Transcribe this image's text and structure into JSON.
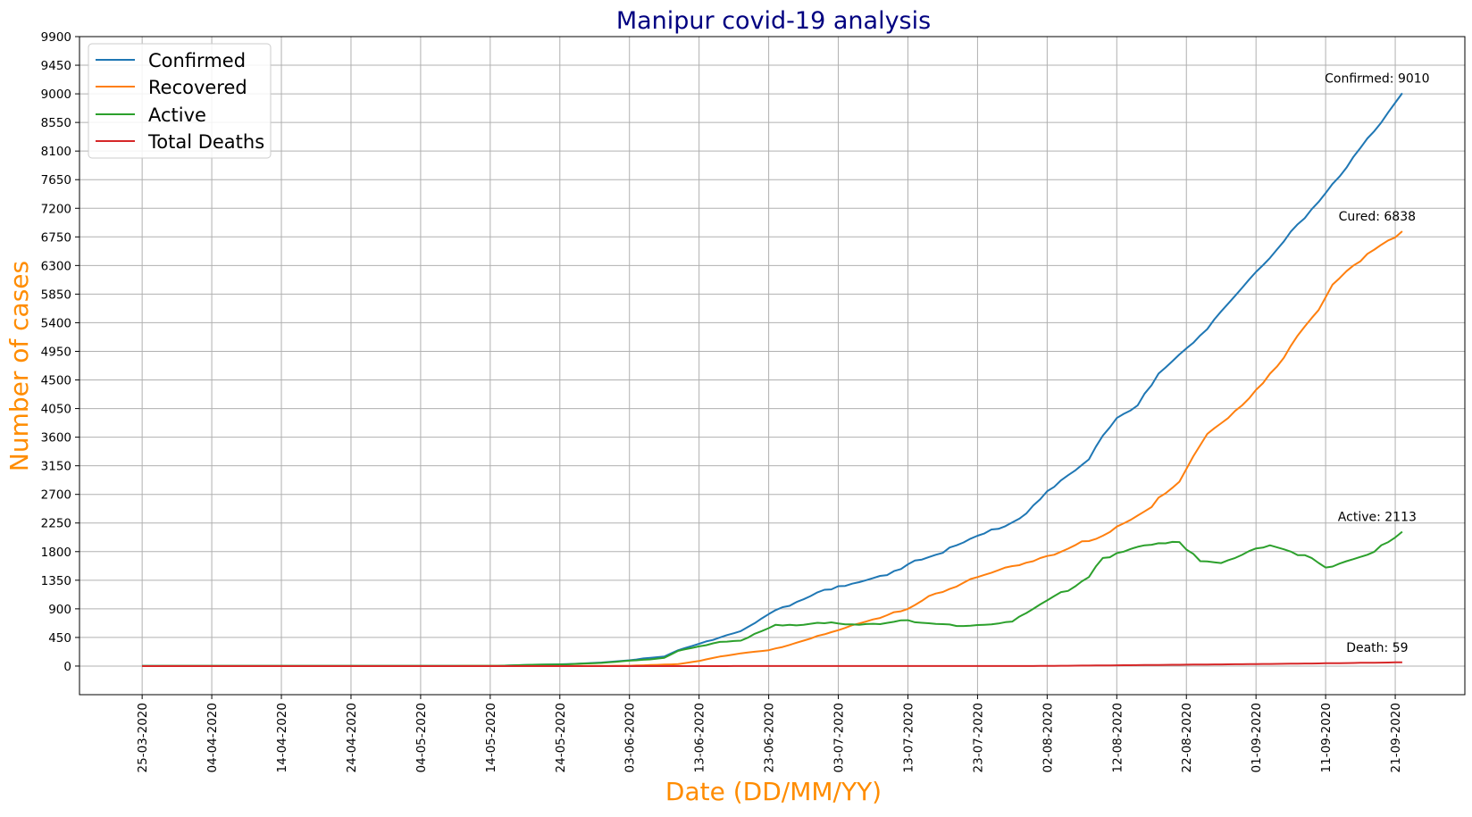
{
  "chart_data": {
    "type": "line",
    "title": "Manipur covid-19 analysis",
    "xlabel": "Date (DD/MM/YY)",
    "ylabel": "Number of cases",
    "x_tick_labels": [
      "25-03-2020",
      "04-04-2020",
      "14-04-2020",
      "24-04-2020",
      "04-05-2020",
      "14-05-2020",
      "24-05-2020",
      "03-06-2020",
      "13-06-2020",
      "23-06-2020",
      "03-07-2020",
      "13-07-2020",
      "23-07-2020",
      "02-08-2020",
      "12-08-2020",
      "22-08-2020",
      "01-09-2020",
      "11-09-2020",
      "21-09-2020"
    ],
    "x_range": [
      "2020-03-16",
      "2020-10-01"
    ],
    "ylim": [
      -450,
      9900
    ],
    "yticks": [
      0,
      450,
      900,
      1350,
      1800,
      2250,
      2700,
      3150,
      3600,
      4050,
      4500,
      4950,
      5400,
      5850,
      6300,
      6750,
      7200,
      7650,
      8100,
      8550,
      9000,
      9450,
      9900
    ],
    "grid": true,
    "legend_position": "upper-left",
    "colors": {
      "title": "#000080",
      "axis_labels": "#ff8c00"
    },
    "series": [
      {
        "name": "Confirmed",
        "color": "#1f77b4",
        "points": [
          [
            "2020-03-25",
            2
          ],
          [
            "2020-05-15",
            3
          ],
          [
            "2020-05-20",
            20
          ],
          [
            "2020-05-25",
            30
          ],
          [
            "2020-05-30",
            55
          ],
          [
            "2020-06-03",
            90
          ],
          [
            "2020-06-05",
            120
          ],
          [
            "2020-06-08",
            150
          ],
          [
            "2020-06-10",
            250
          ],
          [
            "2020-06-13",
            350
          ],
          [
            "2020-06-16",
            450
          ],
          [
            "2020-06-19",
            550
          ],
          [
            "2020-06-22",
            750
          ],
          [
            "2020-06-24",
            880
          ],
          [
            "2020-06-28",
            1050
          ],
          [
            "2020-07-01",
            1200
          ],
          [
            "2020-07-04",
            1260
          ],
          [
            "2020-07-07",
            1350
          ],
          [
            "2020-07-10",
            1430
          ],
          [
            "2020-07-13",
            1600
          ],
          [
            "2020-07-17",
            1750
          ],
          [
            "2020-07-20",
            1900
          ],
          [
            "2020-07-23",
            2050
          ],
          [
            "2020-07-27",
            2200
          ],
          [
            "2020-07-30",
            2400
          ],
          [
            "2020-08-02",
            2750
          ],
          [
            "2020-08-05",
            3000
          ],
          [
            "2020-08-08",
            3250
          ],
          [
            "2020-08-09",
            3450
          ],
          [
            "2020-08-12",
            3900
          ],
          [
            "2020-08-15",
            4100
          ],
          [
            "2020-08-18",
            4600
          ],
          [
            "2020-08-21",
            4900
          ],
          [
            "2020-08-25",
            5300
          ],
          [
            "2020-08-28",
            5700
          ],
          [
            "2020-09-01",
            6200
          ],
          [
            "2020-09-04",
            6550
          ],
          [
            "2020-09-07",
            6950
          ],
          [
            "2020-09-10",
            7300
          ],
          [
            "2020-09-13",
            7700
          ],
          [
            "2020-09-16",
            8150
          ],
          [
            "2020-09-19",
            8550
          ],
          [
            "2020-09-22",
            9010
          ]
        ]
      },
      {
        "name": "Recovered",
        "color": "#ff7f0e",
        "points": [
          [
            "2020-03-25",
            0
          ],
          [
            "2020-05-25",
            2
          ],
          [
            "2020-06-03",
            5
          ],
          [
            "2020-06-10",
            30
          ],
          [
            "2020-06-13",
            80
          ],
          [
            "2020-06-16",
            150
          ],
          [
            "2020-06-19",
            200
          ],
          [
            "2020-06-23",
            250
          ],
          [
            "2020-06-25",
            300
          ],
          [
            "2020-06-28",
            400
          ],
          [
            "2020-07-01",
            500
          ],
          [
            "2020-07-04",
            600
          ],
          [
            "2020-07-07",
            700
          ],
          [
            "2020-07-10",
            800
          ],
          [
            "2020-07-13",
            900
          ],
          [
            "2020-07-16",
            1100
          ],
          [
            "2020-07-20",
            1250
          ],
          [
            "2020-07-23",
            1400
          ],
          [
            "2020-07-27",
            1550
          ],
          [
            "2020-07-31",
            1650
          ],
          [
            "2020-08-03",
            1750
          ],
          [
            "2020-08-06",
            1900
          ],
          [
            "2020-08-10",
            2050
          ],
          [
            "2020-08-14",
            2300
          ],
          [
            "2020-08-17",
            2500
          ],
          [
            "2020-08-18",
            2650
          ],
          [
            "2020-08-21",
            2900
          ],
          [
            "2020-08-23",
            3300
          ],
          [
            "2020-08-25",
            3650
          ],
          [
            "2020-08-28",
            3900
          ],
          [
            "2020-08-30",
            4100
          ],
          [
            "2020-09-02",
            4450
          ],
          [
            "2020-09-05",
            4850
          ],
          [
            "2020-09-07",
            5200
          ],
          [
            "2020-09-10",
            5600
          ],
          [
            "2020-09-12",
            6000
          ],
          [
            "2020-09-15",
            6300
          ],
          [
            "2020-09-18",
            6550
          ],
          [
            "2020-09-22",
            6838
          ]
        ]
      },
      {
        "name": "Active",
        "color": "#2ca02c",
        "points": [
          [
            "2020-03-25",
            2
          ],
          [
            "2020-05-15",
            3
          ],
          [
            "2020-05-20",
            20
          ],
          [
            "2020-05-25",
            28
          ],
          [
            "2020-05-30",
            50
          ],
          [
            "2020-06-03",
            85
          ],
          [
            "2020-06-06",
            105
          ],
          [
            "2020-06-08",
            130
          ],
          [
            "2020-06-10",
            240
          ],
          [
            "2020-06-13",
            310
          ],
          [
            "2020-06-16",
            380
          ],
          [
            "2020-06-19",
            400
          ],
          [
            "2020-06-22",
            550
          ],
          [
            "2020-06-24",
            650
          ],
          [
            "2020-06-27",
            640
          ],
          [
            "2020-06-30",
            680
          ],
          [
            "2020-07-03",
            670
          ],
          [
            "2020-07-06",
            650
          ],
          [
            "2020-07-09",
            660
          ],
          [
            "2020-07-12",
            720
          ],
          [
            "2020-07-15",
            680
          ],
          [
            "2020-07-18",
            660
          ],
          [
            "2020-07-21",
            630
          ],
          [
            "2020-07-24",
            650
          ],
          [
            "2020-07-28",
            700
          ],
          [
            "2020-07-31",
            900
          ],
          [
            "2020-08-03",
            1100
          ],
          [
            "2020-08-06",
            1250
          ],
          [
            "2020-08-08",
            1400
          ],
          [
            "2020-08-10",
            1700
          ],
          [
            "2020-08-13",
            1800
          ],
          [
            "2020-08-16",
            1900
          ],
          [
            "2020-08-21",
            1950
          ],
          [
            "2020-08-24",
            1650
          ],
          [
            "2020-08-27",
            1620
          ],
          [
            "2020-08-29",
            1700
          ],
          [
            "2020-09-01",
            1850
          ],
          [
            "2020-09-03",
            1900
          ],
          [
            "2020-09-06",
            1800
          ],
          [
            "2020-09-09",
            1700
          ],
          [
            "2020-09-11",
            1550
          ],
          [
            "2020-09-14",
            1650
          ],
          [
            "2020-09-17",
            1750
          ],
          [
            "2020-09-20",
            1950
          ],
          [
            "2020-09-22",
            2113
          ]
        ]
      },
      {
        "name": "Total Deaths",
        "color": "#d62728",
        "points": [
          [
            "2020-03-25",
            0
          ],
          [
            "2020-06-13",
            0
          ],
          [
            "2020-07-31",
            1
          ],
          [
            "2020-08-10",
            10
          ],
          [
            "2020-08-20",
            20
          ],
          [
            "2020-08-31",
            30
          ],
          [
            "2020-09-10",
            42
          ],
          [
            "2020-09-22",
            59
          ]
        ]
      }
    ],
    "annotations": [
      {
        "text": "Confirmed: 9010",
        "series": "Confirmed"
      },
      {
        "text": "Cured: 6838",
        "series": "Recovered"
      },
      {
        "text": "Active: 2113",
        "series": "Active"
      },
      {
        "text": "Death: 59",
        "series": "Total Deaths"
      }
    ]
  }
}
